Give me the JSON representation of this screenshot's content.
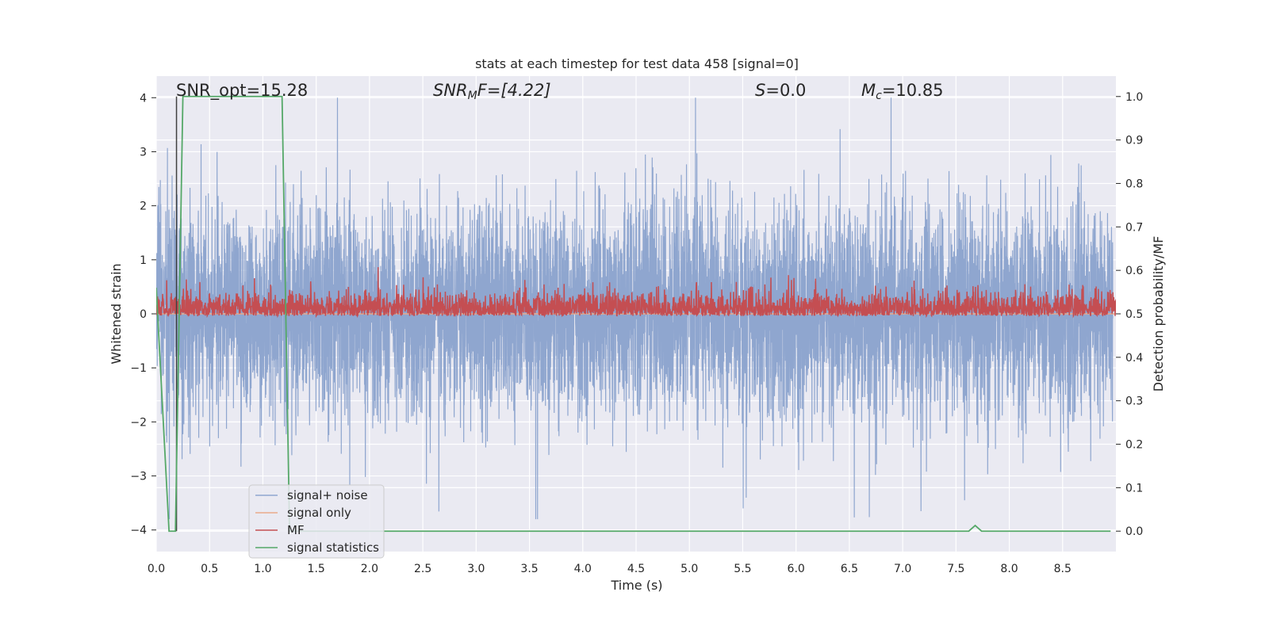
{
  "chart_data": {
    "type": "line",
    "title": "stats at each timestep for test data 458 [signal=0]",
    "xlabel": "Time (s)",
    "ylabel": "Whitened strain",
    "y2label": "Detection probability/MF",
    "xlim": [
      0.0,
      9.0
    ],
    "ylim": [
      -4.4,
      4.4
    ],
    "y2lim": [
      -0.047,
      1.047
    ],
    "grid": true,
    "legend_position": "lower-left",
    "x_ticks": [
      "0.0",
      "0.5",
      "1.0",
      "1.5",
      "2.0",
      "2.5",
      "3.0",
      "3.5",
      "4.0",
      "4.5",
      "5.0",
      "5.5",
      "6.0",
      "6.5",
      "7.0",
      "7.5",
      "8.0",
      "8.5"
    ],
    "y_ticks": [
      "4",
      "3",
      "2",
      "1",
      "0",
      "−1",
      "−2",
      "−3",
      "−4"
    ],
    "y2_ticks": [
      "1.0",
      "0.9",
      "0.8",
      "0.7",
      "0.6",
      "0.5",
      "0.4",
      "0.3",
      "0.2",
      "0.1",
      "0.0"
    ],
    "annotations": {
      "snr_opt": "SNR_opt=15.28",
      "snr_mf_base": "SNR",
      "snr_mf_sub": "M",
      "snr_mf_rest": "F=[4.22]",
      "s_italic": "S",
      "s_rest": "=0.0",
      "mc_italic": "M",
      "mc_sub": "c",
      "mc_rest": "=10.85"
    },
    "series": [
      {
        "name": "signal+ noise",
        "color": "#8fa6cf",
        "axis": "left",
        "envelope": {
          "min": -3.8,
          "max": 4.0,
          "typical_abs": 2.2
        }
      },
      {
        "name": "signal only",
        "color": "#eaa98a",
        "axis": "left",
        "values_constant": 0.0
      },
      {
        "name": "MF",
        "color": "#c44e52",
        "axis": "right",
        "envelope": {
          "min": 0.495,
          "max": 0.615
        }
      },
      {
        "name": "signal statistics",
        "color": "#55a868",
        "axis": "right",
        "x": [
          0.0,
          0.12,
          0.18,
          0.25,
          1.18,
          1.25,
          7.62,
          7.68,
          7.74,
          8.95
        ],
        "values": [
          0.56,
          0.0,
          0.0,
          1.0,
          1.0,
          0.0,
          0.0,
          0.013,
          0.0,
          0.0
        ]
      }
    ],
    "vertical_marker": {
      "x": 0.19,
      "color": "#404040"
    }
  }
}
